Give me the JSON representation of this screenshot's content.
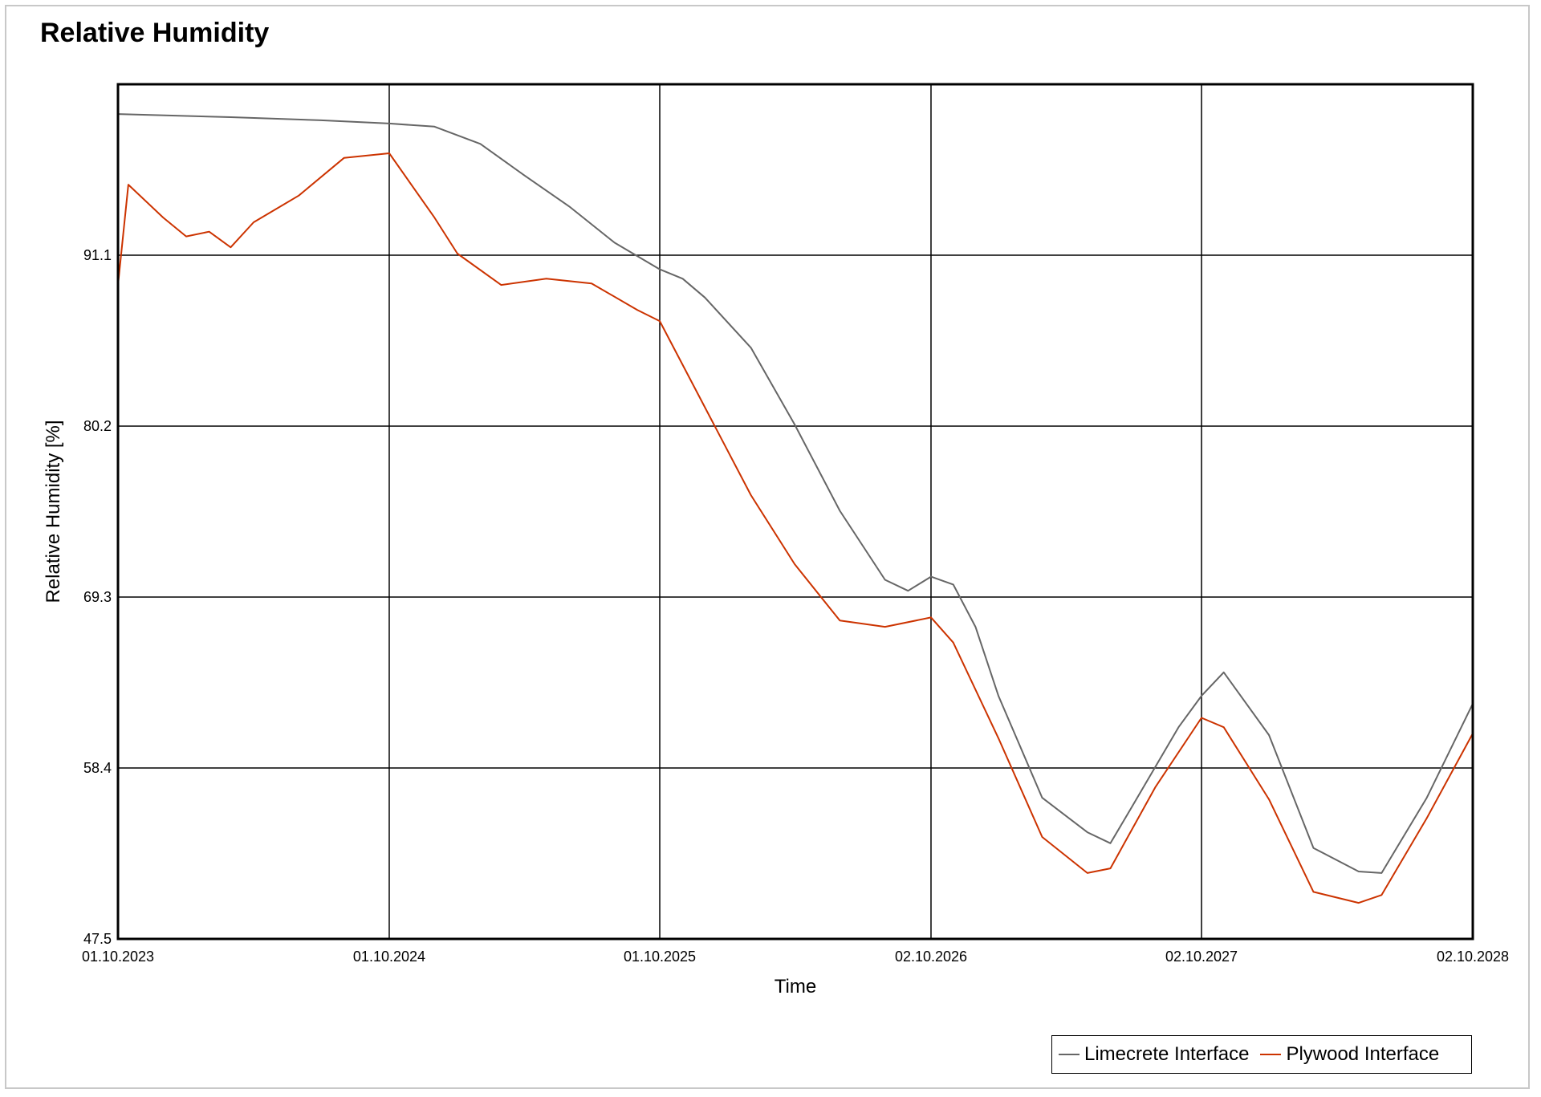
{
  "chart_data": {
    "type": "line",
    "title": "Relative Humidity",
    "xlabel": "Time",
    "ylabel": "Relative Humidity [%]",
    "xlim": [
      "01.10.2023",
      "02.10.2028"
    ],
    "ylim": [
      47.5,
      102.0
    ],
    "x_ticks": [
      "01.10.2023",
      "01.10.2024",
      "01.10.2025",
      "02.10.2026",
      "02.10.2027",
      "02.10.2028"
    ],
    "y_ticks": [
      47.5,
      58.4,
      69.3,
      80.2,
      91.1
    ],
    "grid": true,
    "legend_position": "bottom-right",
    "series": [
      {
        "name": "Limecrete Interface",
        "color": "#666666",
        "points": [
          [
            "01.10.2023",
            100.1
          ],
          [
            "01.03.2024",
            99.9
          ],
          [
            "01.07.2024",
            99.7
          ],
          [
            "01.10.2024",
            99.5
          ],
          [
            "01.12.2024",
            99.3
          ],
          [
            "01.02.2025",
            98.2
          ],
          [
            "01.04.2025",
            96.2
          ],
          [
            "01.06.2025",
            94.2
          ],
          [
            "01.08.2025",
            91.9
          ],
          [
            "01.10.2025",
            90.2
          ],
          [
            "01.11.2025",
            89.6
          ],
          [
            "01.12.2025",
            88.4
          ],
          [
            "01.02.2026",
            85.2
          ],
          [
            "01.04.2026",
            80.3
          ],
          [
            "01.06.2026",
            74.8
          ],
          [
            "01.08.2026",
            70.4
          ],
          [
            "01.09.2026",
            69.7
          ],
          [
            "02.10.2026",
            70.6
          ],
          [
            "01.11.2026",
            70.1
          ],
          [
            "01.12.2026",
            67.4
          ],
          [
            "01.01.2027",
            63.0
          ],
          [
            "01.03.2027",
            56.5
          ],
          [
            "01.05.2027",
            54.3
          ],
          [
            "01.06.2027",
            53.6
          ],
          [
            "01.07.2027",
            56.0
          ],
          [
            "01.09.2027",
            61.0
          ],
          [
            "02.10.2027",
            63.0
          ],
          [
            "01.11.2027",
            64.5
          ],
          [
            "01.01.2028",
            60.5
          ],
          [
            "01.03.2028",
            53.3
          ],
          [
            "01.05.2028",
            51.8
          ],
          [
            "01.06.2028",
            51.7
          ],
          [
            "01.08.2028",
            56.5
          ],
          [
            "02.10.2028",
            62.5
          ]
        ]
      },
      {
        "name": "Plywood Interface",
        "color": "#cc3300",
        "points": [
          [
            "01.10.2023",
            89.2
          ],
          [
            "15.10.2023",
            95.6
          ],
          [
            "01.12.2023",
            93.5
          ],
          [
            "01.01.2024",
            92.3
          ],
          [
            "01.02.2024",
            92.6
          ],
          [
            "01.03.2024",
            91.6
          ],
          [
            "01.04.2024",
            93.2
          ],
          [
            "01.06.2024",
            94.9
          ],
          [
            "01.08.2024",
            97.3
          ],
          [
            "01.10.2024",
            97.6
          ],
          [
            "01.12.2024",
            93.5
          ],
          [
            "01.01.2025",
            91.2
          ],
          [
            "01.03.2025",
            89.2
          ],
          [
            "01.05.2025",
            89.6
          ],
          [
            "01.07.2025",
            89.3
          ],
          [
            "01.09.2025",
            87.6
          ],
          [
            "01.10.2025",
            86.9
          ],
          [
            "01.12.2025",
            81.4
          ],
          [
            "01.02.2026",
            75.8
          ],
          [
            "01.04.2026",
            71.4
          ],
          [
            "01.06.2026",
            67.8
          ],
          [
            "01.08.2026",
            67.4
          ],
          [
            "02.10.2026",
            68.0
          ],
          [
            "01.11.2026",
            66.4
          ],
          [
            "01.01.2027",
            60.3
          ],
          [
            "01.03.2027",
            54.0
          ],
          [
            "01.05.2027",
            51.7
          ],
          [
            "01.06.2027",
            52.0
          ],
          [
            "01.08.2027",
            57.2
          ],
          [
            "02.10.2027",
            61.6
          ],
          [
            "01.11.2027",
            61.0
          ],
          [
            "01.01.2028",
            56.4
          ],
          [
            "01.03.2028",
            50.5
          ],
          [
            "01.05.2028",
            49.8
          ],
          [
            "01.06.2028",
            50.3
          ],
          [
            "01.08.2028",
            55.2
          ],
          [
            "02.10.2028",
            60.6
          ]
        ]
      }
    ]
  }
}
